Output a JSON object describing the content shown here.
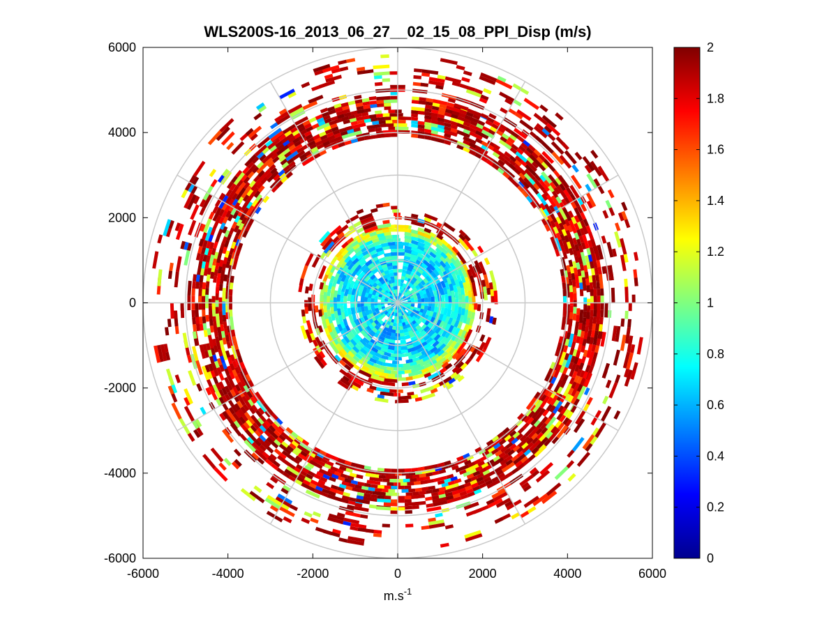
{
  "chart_data": {
    "type": "heatmap",
    "subtype": "polar-ppi",
    "title": "WLS200S-16_2013_06_27__02_15_08_PPI_Disp (m/s)",
    "xlabel_base": "m.s",
    "xlabel_exp": "-1",
    "ylabel": "",
    "xlim": [
      -6000,
      6000
    ],
    "ylim": [
      -6000,
      6000
    ],
    "x_ticks": [
      "-6000",
      "-4000",
      "-2000",
      "0",
      "2000",
      "4000",
      "6000"
    ],
    "y_ticks": [
      "6000",
      "4000",
      "2000",
      "0",
      "-2000",
      "-4000",
      "-6000"
    ],
    "x_tick_values": [
      -6000,
      -4000,
      -2000,
      0,
      2000,
      4000,
      6000
    ],
    "y_tick_values": [
      6000,
      4000,
      2000,
      0,
      -2000,
      -4000,
      -6000
    ],
    "range_rings_m": [
      1000,
      2000,
      3000,
      4000,
      5000,
      6000
    ],
    "spokes_deg": [
      0,
      30,
      60,
      90,
      120,
      150,
      180,
      210,
      240,
      270,
      300,
      330
    ],
    "colorbar": {
      "min": 0,
      "max": 2,
      "ticks": [
        "2",
        "1.8",
        "1.6",
        "1.4",
        "1.2",
        "1",
        "0.8",
        "0.6",
        "0.4",
        "0.2",
        "0"
      ],
      "tick_values": [
        2,
        1.8,
        1.6,
        1.4,
        1.2,
        1,
        0.8,
        0.6,
        0.4,
        0.2,
        0
      ],
      "colormap": "jet"
    },
    "data_regions": [
      {
        "name": "inner-disk",
        "r_min": 0,
        "r_max": 1800,
        "typical_value": 0.7,
        "fill_fraction": 0.93
      },
      {
        "name": "inner-fringe",
        "r_min": 1800,
        "r_max": 2300,
        "typical_value": 1.9,
        "fill_fraction": 0.35
      },
      {
        "name": "middle-ring",
        "r_min": 3900,
        "r_max": 4800,
        "typical_value": 1.75,
        "fill_fraction": 0.75
      },
      {
        "name": "outer-scatter",
        "r_min": 4800,
        "r_max": 5800,
        "typical_value": 1.95,
        "fill_fraction": 0.18
      }
    ],
    "missing_sector_deg": [
      0,
      4
    ]
  }
}
